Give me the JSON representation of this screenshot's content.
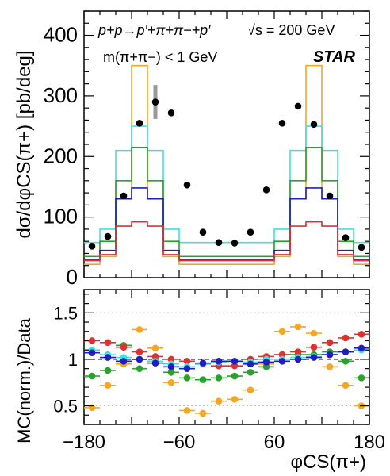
{
  "chart_data": [
    {
      "type": "step",
      "ylabel": "dσ/dφCS(π+) [pb/deg]",
      "ylim": [
        0,
        440
      ],
      "xlim": [
        -180,
        180
      ],
      "yticks": [
        "0",
        "100",
        "200",
        "300",
        "400"
      ],
      "bin_edges": [
        -180,
        -160,
        -140,
        -120,
        -100,
        -80,
        -60,
        -40,
        -20,
        0,
        20,
        40,
        60,
        80,
        100,
        120,
        140,
        160,
        180
      ],
      "series": [
        {
          "color": "#f5a623",
          "values": [
            22,
            35,
            130,
            350,
            130,
            35,
            22,
            22,
            22,
            22,
            22,
            22,
            35,
            130,
            350,
            130,
            35,
            22
          ]
        },
        {
          "color": "#40e0e0",
          "values": [
            58,
            80,
            210,
            250,
            210,
            80,
            58,
            58,
            58,
            58,
            58,
            58,
            80,
            210,
            250,
            210,
            80,
            58
          ]
        },
        {
          "color": "#2ca02c",
          "values": [
            35,
            60,
            160,
            215,
            160,
            60,
            35,
            35,
            35,
            35,
            35,
            35,
            60,
            160,
            215,
            160,
            60,
            35
          ]
        },
        {
          "color": "#1f1fbf",
          "values": [
            30,
            45,
            130,
            148,
            130,
            45,
            30,
            30,
            30,
            30,
            30,
            30,
            45,
            130,
            148,
            130,
            45,
            30
          ]
        },
        {
          "color": "#e03030",
          "values": [
            28,
            38,
            85,
            92,
            85,
            38,
            28,
            28,
            28,
            28,
            28,
            28,
            38,
            85,
            92,
            85,
            38,
            28
          ]
        }
      ],
      "data_points": {
        "x": [
          -170,
          -150,
          -130,
          -110,
          -90,
          -70,
          -50,
          -30,
          -10,
          10,
          30,
          50,
          70,
          90,
          110,
          130,
          150,
          170
        ],
        "y": [
          52,
          68,
          135,
          255,
          290,
          272,
          153,
          75,
          58,
          57,
          75,
          145,
          255,
          283,
          253,
          135,
          66,
          50
        ],
        "syst_bar": {
          "x": -90,
          "low": 262,
          "high": 318
        }
      },
      "annotations": {
        "reaction": "p+p→p′+π+π−+p′",
        "energy": "√s = 200 GeV",
        "cut": "m(π+π−) < 1 GeV",
        "experiment": "STAR"
      }
    },
    {
      "type": "scatter",
      "xlabel": "φCS(π+)",
      "ylabel": "MC(norm.)/Data",
      "ylim": [
        0.3,
        1.75
      ],
      "xlim": [
        -180,
        180
      ],
      "yticks": [
        "0.5",
        "1",
        "1.5"
      ],
      "xticks": [
        "−180",
        "−60",
        "60",
        "180"
      ],
      "reference_line": 1.0,
      "series": [
        {
          "color": "#f5a623",
          "values": [
            0.48,
            0.72,
            0.95,
            1.32,
            1.12,
            0.75,
            0.45,
            0.42,
            0.55,
            0.57,
            0.67,
            0.95,
            1.3,
            1.35,
            1.28,
            0.92,
            0.72,
            0.5
          ]
        },
        {
          "color": "#2ca02c",
          "values": [
            0.82,
            0.88,
            1.15,
            0.9,
            0.96,
            0.86,
            0.8,
            0.78,
            0.8,
            0.82,
            0.86,
            0.92,
            1.05,
            1.05,
            1.05,
            1.08,
            0.98,
            0.8
          ]
        },
        {
          "color": "#e03030",
          "values": [
            1.2,
            1.18,
            1.13,
            1.08,
            1.03,
            1.0,
            0.98,
            0.95,
            0.93,
            0.93,
            1.0,
            1.03,
            1.05,
            1.08,
            1.13,
            1.18,
            1.23,
            1.27
          ]
        },
        {
          "color": "#40e0e0",
          "values": [
            1.1,
            1.05,
            1.02,
            1.0,
            0.98,
            0.95,
            0.92,
            0.95,
            0.97,
            0.98,
            0.97,
            1.0,
            1.0,
            1.02,
            1.03,
            1.05,
            1.08,
            1.1
          ]
        },
        {
          "color": "#1f1fbf",
          "values": [
            1.07,
            1.02,
            0.98,
            1.0,
            0.96,
            0.92,
            0.9,
            0.96,
            0.98,
            0.98,
            0.95,
            0.97,
            0.98,
            1.0,
            1.02,
            1.05,
            1.08,
            1.12
          ]
        }
      ]
    }
  ]
}
